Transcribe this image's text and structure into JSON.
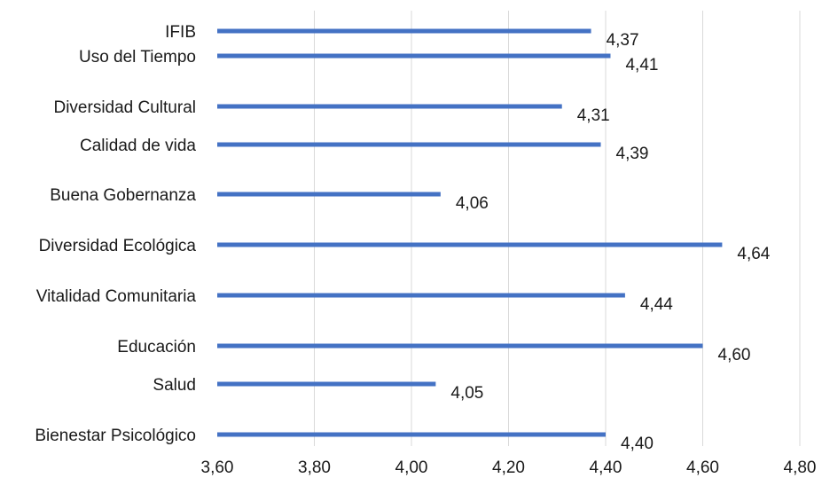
{
  "chart_data": {
    "type": "bar",
    "orientation": "horizontal",
    "categories": [
      "IFIB",
      "Uso del Tiempo",
      "Diversidad Cultural",
      "Calidad de vida",
      "Buena Gobernanza",
      "Diversidad Ecológica",
      "Vitalidad Comunitaria",
      "Educación",
      "Salud",
      "Bienestar Psicológico"
    ],
    "values": [
      4.37,
      4.41,
      4.31,
      4.39,
      4.06,
      4.64,
      4.44,
      4.6,
      4.05,
      4.4
    ],
    "data_labels": [
      "4,37",
      "4,41",
      "4,31",
      "4,39",
      "4,06",
      "4,64",
      "4,44",
      "4,60",
      "4,05",
      "4,40"
    ],
    "xlim": [
      3.6,
      4.8
    ],
    "xticks": [
      3.6,
      3.8,
      4.0,
      4.2,
      4.4,
      4.6,
      4.8
    ],
    "xtick_labels": [
      "3,60",
      "3,80",
      "4,00",
      "4,20",
      "4,40",
      "4,60",
      "4,80"
    ],
    "grid": "vertical",
    "bar_color": "#4472C4",
    "grid_color": "#d9d9d9"
  }
}
